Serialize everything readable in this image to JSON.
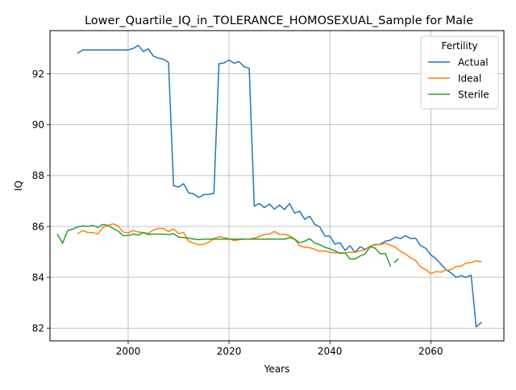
{
  "chart_data": {
    "type": "line",
    "title": "Lower_Quartile_IQ_in_TOLERANCE_HOMOSEXUAL_Sample for Male",
    "xlabel": "Years",
    "ylabel": "IQ",
    "xlim": [
      1984.5,
      2074.5
    ],
    "ylim": [
      81.5,
      93.7
    ],
    "xticks": [
      2000,
      2020,
      2040,
      2060
    ],
    "yticks": [
      82,
      84,
      86,
      88,
      90,
      92
    ],
    "grid": true,
    "legend": {
      "title": "Fertility",
      "placement": "top-right"
    },
    "series": [
      {
        "name": "Actual",
        "color": "#1f77b4",
        "points": [
          [
            1990,
            92.82
          ],
          [
            1991,
            92.94
          ],
          [
            1992,
            92.94
          ],
          [
            1993,
            92.94
          ],
          [
            1994,
            92.94
          ],
          [
            1995,
            92.94
          ],
          [
            1996,
            92.94
          ],
          [
            1997,
            92.94
          ],
          [
            1998,
            92.94
          ],
          [
            1999,
            92.94
          ],
          [
            2000,
            92.94
          ],
          [
            2001,
            93.0
          ],
          [
            2002,
            93.12
          ],
          [
            2003,
            92.88
          ],
          [
            2004,
            92.98
          ],
          [
            2005,
            92.7
          ],
          [
            2006,
            92.62
          ],
          [
            2007,
            92.58
          ],
          [
            2008,
            92.45
          ],
          [
            2009,
            87.6
          ],
          [
            2010,
            87.55
          ],
          [
            2011,
            87.68
          ],
          [
            2012,
            87.32
          ],
          [
            2013,
            87.28
          ],
          [
            2014,
            87.14
          ],
          [
            2015,
            87.25
          ],
          [
            2016,
            87.26
          ],
          [
            2017,
            87.3
          ],
          [
            2018,
            92.4
          ],
          [
            2019,
            92.43
          ],
          [
            2020,
            92.54
          ],
          [
            2021,
            92.42
          ],
          [
            2022,
            92.48
          ],
          [
            2023,
            92.28
          ],
          [
            2024,
            92.22
          ],
          [
            2025,
            86.8
          ],
          [
            2026,
            86.9
          ],
          [
            2027,
            86.74
          ],
          [
            2028,
            86.88
          ],
          [
            2029,
            86.68
          ],
          [
            2030,
            86.84
          ],
          [
            2031,
            86.66
          ],
          [
            2032,
            86.9
          ],
          [
            2033,
            86.52
          ],
          [
            2034,
            86.6
          ],
          [
            2035,
            86.28
          ],
          [
            2036,
            86.4
          ],
          [
            2037,
            86.08
          ],
          [
            2038,
            85.98
          ],
          [
            2039,
            85.62
          ],
          [
            2040,
            85.62
          ],
          [
            2041,
            85.3
          ],
          [
            2042,
            85.36
          ],
          [
            2043,
            85.06
          ],
          [
            2044,
            85.24
          ],
          [
            2045,
            84.98
          ],
          [
            2046,
            85.2
          ],
          [
            2047,
            85.1
          ],
          [
            2048,
            85.22
          ],
          [
            2049,
            85.28
          ],
          [
            2050,
            85.3
          ],
          [
            2051,
            85.42
          ],
          [
            2052,
            85.46
          ],
          [
            2053,
            85.58
          ],
          [
            2054,
            85.52
          ],
          [
            2055,
            85.64
          ],
          [
            2056,
            85.52
          ],
          [
            2057,
            85.54
          ],
          [
            2058,
            85.24
          ],
          [
            2059,
            85.14
          ],
          [
            2060,
            84.88
          ],
          [
            2061,
            84.74
          ],
          [
            2062,
            84.52
          ],
          [
            2063,
            84.3
          ],
          [
            2064,
            84.18
          ],
          [
            2065,
            84.0
          ],
          [
            2066,
            84.06
          ],
          [
            2067,
            84.0
          ],
          [
            2068,
            84.08
          ],
          [
            2069,
            82.05
          ],
          [
            2070,
            82.22
          ]
        ]
      },
      {
        "name": "Ideal",
        "color": "#ff7f0e",
        "points": [
          [
            1990,
            85.72
          ],
          [
            1991,
            85.84
          ],
          [
            1992,
            85.76
          ],
          [
            1993,
            85.76
          ],
          [
            1994,
            85.7
          ],
          [
            1995,
            85.96
          ],
          [
            1996,
            86.04
          ],
          [
            1997,
            86.1
          ],
          [
            1998,
            86.02
          ],
          [
            1999,
            85.78
          ],
          [
            2000,
            85.74
          ],
          [
            2001,
            85.84
          ],
          [
            2002,
            85.78
          ],
          [
            2003,
            85.76
          ],
          [
            2004,
            85.72
          ],
          [
            2005,
            85.86
          ],
          [
            2006,
            85.92
          ],
          [
            2007,
            85.92
          ],
          [
            2008,
            85.8
          ],
          [
            2009,
            85.9
          ],
          [
            2010,
            85.72
          ],
          [
            2011,
            85.76
          ],
          [
            2012,
            85.42
          ],
          [
            2013,
            85.34
          ],
          [
            2014,
            85.28
          ],
          [
            2015,
            85.3
          ],
          [
            2016,
            85.38
          ],
          [
            2017,
            85.52
          ],
          [
            2018,
            85.6
          ],
          [
            2019,
            85.56
          ],
          [
            2020,
            85.52
          ],
          [
            2021,
            85.44
          ],
          [
            2022,
            85.48
          ],
          [
            2023,
            85.5
          ],
          [
            2024,
            85.5
          ],
          [
            2025,
            85.54
          ],
          [
            2026,
            85.6
          ],
          [
            2027,
            85.68
          ],
          [
            2028,
            85.7
          ],
          [
            2029,
            85.8
          ],
          [
            2030,
            85.68
          ],
          [
            2031,
            85.68
          ],
          [
            2032,
            85.64
          ],
          [
            2033,
            85.5
          ],
          [
            2034,
            85.24
          ],
          [
            2035,
            85.18
          ],
          [
            2036,
            85.16
          ],
          [
            2037,
            85.1
          ],
          [
            2038,
            85.02
          ],
          [
            2039,
            85.04
          ],
          [
            2040,
            84.98
          ],
          [
            2041,
            84.96
          ],
          [
            2042,
            84.96
          ],
          [
            2043,
            84.96
          ],
          [
            2044,
            84.98
          ],
          [
            2045,
            84.98
          ],
          [
            2046,
            85.04
          ],
          [
            2047,
            85.08
          ],
          [
            2048,
            85.22
          ],
          [
            2049,
            85.3
          ],
          [
            2050,
            85.28
          ],
          [
            2051,
            85.34
          ],
          [
            2052,
            85.26
          ],
          [
            2053,
            85.18
          ],
          [
            2054,
            85.02
          ],
          [
            2055,
            84.92
          ],
          [
            2056,
            84.76
          ],
          [
            2057,
            84.66
          ],
          [
            2058,
            84.4
          ],
          [
            2059,
            84.3
          ],
          [
            2060,
            84.14
          ],
          [
            2061,
            84.22
          ],
          [
            2062,
            84.2
          ],
          [
            2063,
            84.28
          ],
          [
            2064,
            84.3
          ],
          [
            2065,
            84.42
          ],
          [
            2066,
            84.44
          ],
          [
            2067,
            84.56
          ],
          [
            2068,
            84.58
          ],
          [
            2069,
            84.64
          ],
          [
            2070,
            84.62
          ]
        ]
      },
      {
        "name": "Sterile",
        "color": "#2ca02c",
        "segments": [
          [
            [
              1986,
              85.68
            ],
            [
              1987,
              85.34
            ],
            [
              1988,
              85.84
            ],
            [
              1989,
              85.9
            ],
            [
              1990,
              85.98
            ],
            [
              1991,
              86.02
            ],
            [
              1992,
              86.0
            ],
            [
              1993,
              86.04
            ],
            [
              1994,
              85.96
            ],
            [
              1995,
              86.08
            ],
            [
              1996,
              86.04
            ],
            [
              1997,
              85.92
            ],
            [
              1998,
              85.82
            ],
            [
              1999,
              85.64
            ],
            [
              2000,
              85.64
            ],
            [
              2001,
              85.7
            ],
            [
              2002,
              85.66
            ],
            [
              2003,
              85.76
            ],
            [
              2004,
              85.68
            ],
            [
              2005,
              85.7
            ],
            [
              2006,
              85.7
            ],
            [
              2007,
              85.7
            ],
            [
              2008,
              85.68
            ],
            [
              2009,
              85.72
            ],
            [
              2010,
              85.58
            ],
            [
              2011,
              85.56
            ],
            [
              2012,
              85.54
            ],
            [
              2013,
              85.5
            ],
            [
              2014,
              85.48
            ],
            [
              2015,
              85.5
            ],
            [
              2016,
              85.5
            ],
            [
              2017,
              85.5
            ],
            [
              2018,
              85.5
            ],
            [
              2019,
              85.5
            ],
            [
              2020,
              85.5
            ],
            [
              2021,
              85.5
            ],
            [
              2022,
              85.5
            ],
            [
              2023,
              85.5
            ],
            [
              2024,
              85.5
            ],
            [
              2025,
              85.5
            ],
            [
              2026,
              85.5
            ],
            [
              2027,
              85.5
            ],
            [
              2028,
              85.5
            ],
            [
              2029,
              85.5
            ],
            [
              2030,
              85.5
            ],
            [
              2031,
              85.5
            ],
            [
              2032,
              85.56
            ],
            [
              2033,
              85.5
            ],
            [
              2034,
              85.36
            ],
            [
              2035,
              85.42
            ],
            [
              2036,
              85.52
            ],
            [
              2037,
              85.34
            ],
            [
              2038,
              85.28
            ],
            [
              2039,
              85.18
            ],
            [
              2040,
              85.12
            ],
            [
              2041,
              85.04
            ],
            [
              2042,
              84.94
            ],
            [
              2043,
              84.96
            ],
            [
              2044,
              84.72
            ],
            [
              2045,
              84.72
            ],
            [
              2046,
              84.84
            ],
            [
              2047,
              84.92
            ],
            [
              2048,
              85.2
            ],
            [
              2049,
              85.14
            ],
            [
              2050,
              84.92
            ],
            [
              2051,
              84.94
            ],
            [
              2052,
              84.44
            ]
          ],
          [
            [
              2053,
              84.62
            ]
          ]
        ]
      }
    ]
  }
}
